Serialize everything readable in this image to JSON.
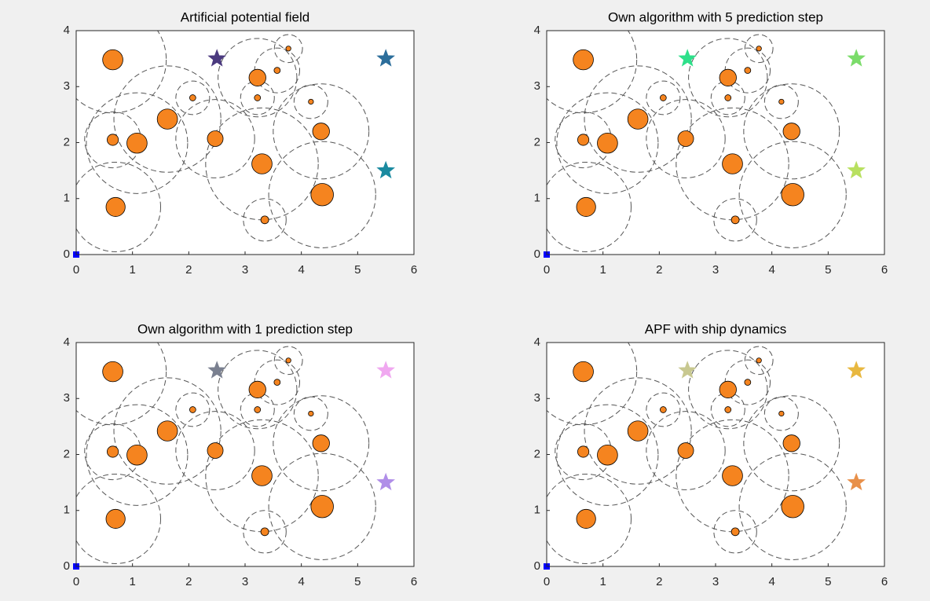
{
  "chart_data": [
    {
      "type": "scatter",
      "title": "Artificial potential field",
      "xlim": [
        0,
        6
      ],
      "ylim": [
        0,
        4
      ],
      "xticks": [
        0,
        1,
        2,
        3,
        4,
        5,
        6
      ],
      "yticks": [
        0,
        1,
        2,
        3,
        4
      ],
      "obstacle_color": "#f5841f",
      "obstacles": {
        "x": [
          0.65,
          1.62,
          1.08,
          0.65,
          0.7,
          2.07,
          2.47,
          3.22,
          3.22,
          3.57,
          3.77,
          4.17,
          4.35,
          3.3,
          4.37,
          3.35
        ],
        "y": [
          3.48,
          2.42,
          1.99,
          2.05,
          0.85,
          2.8,
          2.07,
          3.16,
          2.8,
          3.29,
          3.68,
          2.73,
          2.2,
          1.62,
          1.07,
          0.62
        ],
        "radius": [
          0.18,
          0.18,
          0.18,
          0.1,
          0.17,
          0.055,
          0.14,
          0.15,
          0.055,
          0.055,
          0.045,
          0.045,
          0.15,
          0.18,
          0.2,
          0.07
        ],
        "influence": [
          0.95,
          0.95,
          0.9,
          0.5,
          0.8,
          0.3,
          0.7,
          0.7,
          0.3,
          0.4,
          0.25,
          0.3,
          0.85,
          1.0,
          0.95,
          0.38
        ]
      },
      "goals": {
        "x": [
          2.5,
          5.5,
          5.5
        ],
        "y": [
          3.5,
          3.5,
          1.5
        ],
        "colors": [
          "#4b3a7f",
          "#2c6e9b",
          "#1a8aa0"
        ]
      },
      "start": {
        "x": 0,
        "y": 0,
        "color": "#0000ff"
      }
    },
    {
      "type": "scatter",
      "title": "Own algorithm with 5 prediction step",
      "xlim": [
        0,
        6
      ],
      "ylim": [
        0,
        4
      ],
      "xticks": [
        0,
        1,
        2,
        3,
        4,
        5,
        6
      ],
      "yticks": [
        0,
        1,
        2,
        3,
        4
      ],
      "obstacle_color": "#f5841f",
      "obstacles": {
        "x": [
          0.65,
          1.62,
          1.08,
          0.65,
          0.7,
          2.07,
          2.47,
          3.22,
          3.22,
          3.57,
          3.77,
          4.17,
          4.35,
          3.3,
          4.37,
          3.35
        ],
        "y": [
          3.48,
          2.42,
          1.99,
          2.05,
          0.85,
          2.8,
          2.07,
          3.16,
          2.8,
          3.29,
          3.68,
          2.73,
          2.2,
          1.62,
          1.07,
          0.62
        ],
        "radius": [
          0.18,
          0.18,
          0.18,
          0.1,
          0.17,
          0.055,
          0.14,
          0.15,
          0.055,
          0.055,
          0.045,
          0.045,
          0.15,
          0.18,
          0.2,
          0.07
        ],
        "influence": [
          0.95,
          0.95,
          0.9,
          0.5,
          0.8,
          0.3,
          0.7,
          0.7,
          0.3,
          0.4,
          0.25,
          0.3,
          0.85,
          1.0,
          0.95,
          0.38
        ]
      },
      "goals": {
        "x": [
          2.5,
          5.5,
          5.5
        ],
        "y": [
          3.5,
          3.5,
          1.5
        ],
        "colors": [
          "#2ee08a",
          "#7bdc6a",
          "#b8e060"
        ]
      },
      "start": {
        "x": 0,
        "y": 0,
        "color": "#0000ff"
      }
    },
    {
      "type": "scatter",
      "title": "Own algorithm with 1 prediction step",
      "xlim": [
        0,
        6
      ],
      "ylim": [
        0,
        4
      ],
      "xticks": [
        0,
        1,
        2,
        3,
        4,
        5,
        6
      ],
      "yticks": [
        0,
        1,
        2,
        3,
        4
      ],
      "obstacle_color": "#f5841f",
      "obstacles": {
        "x": [
          0.65,
          1.62,
          1.08,
          0.65,
          0.7,
          2.07,
          2.47,
          3.22,
          3.22,
          3.57,
          3.77,
          4.17,
          4.35,
          3.3,
          4.37,
          3.35
        ],
        "y": [
          3.48,
          2.42,
          1.99,
          2.05,
          0.85,
          2.8,
          2.07,
          3.16,
          2.8,
          3.29,
          3.68,
          2.73,
          2.2,
          1.62,
          1.07,
          0.62
        ],
        "radius": [
          0.18,
          0.18,
          0.18,
          0.1,
          0.17,
          0.055,
          0.14,
          0.15,
          0.055,
          0.055,
          0.045,
          0.045,
          0.15,
          0.18,
          0.2,
          0.07
        ],
        "influence": [
          0.95,
          0.95,
          0.9,
          0.5,
          0.8,
          0.3,
          0.7,
          0.7,
          0.3,
          0.4,
          0.25,
          0.3,
          0.85,
          1.0,
          0.95,
          0.38
        ]
      },
      "goals": {
        "x": [
          2.5,
          5.5,
          5.5
        ],
        "y": [
          3.5,
          3.5,
          1.5
        ],
        "colors": [
          "#7a8090",
          "#f0a8f0",
          "#b08ee8"
        ]
      },
      "start": {
        "x": 0,
        "y": 0,
        "color": "#0000ff"
      }
    },
    {
      "type": "scatter",
      "title": "APF with ship dynamics",
      "xlim": [
        0,
        6
      ],
      "ylim": [
        0,
        4
      ],
      "xticks": [
        0,
        1,
        2,
        3,
        4,
        5,
        6
      ],
      "yticks": [
        0,
        1,
        2,
        3,
        4
      ],
      "obstacle_color": "#f5841f",
      "obstacles": {
        "x": [
          0.65,
          1.62,
          1.08,
          0.65,
          0.7,
          2.07,
          2.47,
          3.22,
          3.22,
          3.57,
          3.77,
          4.17,
          4.35,
          3.3,
          4.37,
          3.35
        ],
        "y": [
          3.48,
          2.42,
          1.99,
          2.05,
          0.85,
          2.8,
          2.07,
          3.16,
          2.8,
          3.29,
          3.68,
          2.73,
          2.2,
          1.62,
          1.07,
          0.62
        ],
        "radius": [
          0.18,
          0.18,
          0.18,
          0.1,
          0.17,
          0.055,
          0.14,
          0.15,
          0.055,
          0.055,
          0.045,
          0.045,
          0.15,
          0.18,
          0.2,
          0.07
        ],
        "influence": [
          0.95,
          0.95,
          0.9,
          0.5,
          0.8,
          0.3,
          0.7,
          0.7,
          0.3,
          0.4,
          0.25,
          0.3,
          0.85,
          1.0,
          0.95,
          0.38
        ]
      },
      "goals": {
        "x": [
          2.5,
          5.5,
          5.5
        ],
        "y": [
          3.5,
          3.5,
          1.5
        ],
        "colors": [
          "#c8c890",
          "#e8b840",
          "#e8904a"
        ]
      },
      "start": {
        "x": 0,
        "y": 0,
        "color": "#0000ff"
      }
    }
  ]
}
